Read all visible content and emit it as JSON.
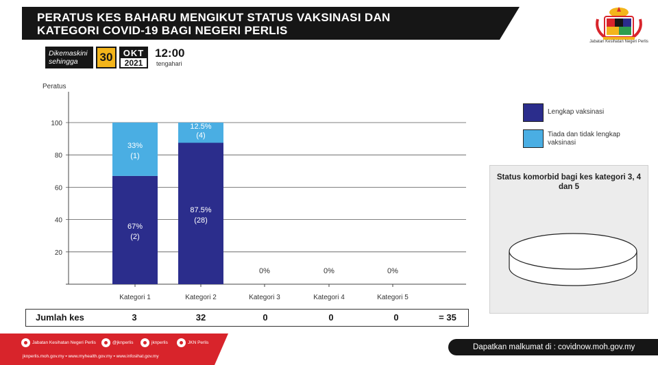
{
  "header": {
    "title_line1": "PERATUS KES BAHARU MENGIKUT STATUS VAKSINASI  DAN",
    "title_line2": "KATEGORI COVID-19 BAGI NEGERI PERLIS",
    "logo_text": "Jabatan Kesihatan Negeri Perlis"
  },
  "update": {
    "label": "Dikemaskini sehingga",
    "day": "30",
    "month": "OKT",
    "year": "2021",
    "time": "12:00",
    "time_sub": "tengahari"
  },
  "colors": {
    "complete": "#2b2d8c",
    "incomplete": "#4aaee3"
  },
  "chart_data": {
    "type": "bar",
    "stacked": true,
    "ylabel": "Peratus",
    "ylim": [
      0,
      100
    ],
    "yticks": [
      20,
      40,
      60,
      80,
      100
    ],
    "grid": true,
    "categories": [
      "Kategori 1",
      "Kategori 2",
      "Kategori 3",
      "Kategori 4",
      "Kategori 5"
    ],
    "series": [
      {
        "name": "Lengkap vaksinasi",
        "values": [
          67,
          87.5,
          0,
          0,
          0
        ],
        "labels": [
          "67%",
          "87.5%",
          "",
          "",
          ""
        ],
        "counts": [
          "(2)",
          "(28)",
          "",
          "",
          ""
        ]
      },
      {
        "name": "Tiada dan tidak lengkap vaksinasi",
        "values": [
          33,
          12.5,
          0,
          0,
          0
        ],
        "labels": [
          "33%",
          "12.5%",
          "",
          "",
          ""
        ],
        "counts": [
          "(1)",
          "(4)",
          "",
          "",
          ""
        ]
      }
    ],
    "zero_labels": [
      "",
      "",
      "0%",
      "0%",
      "0%"
    ]
  },
  "legend": {
    "complete": "Lengkap vaksinasi",
    "incomplete": "Tiada dan tidak lengkap vaksinasi"
  },
  "comorbid": {
    "title": "Status komorbid bagi kes kategori 3, 4 dan 5"
  },
  "totals": {
    "label": "Jumlah kes",
    "values": [
      "3",
      "32",
      "0",
      "0",
      "0"
    ],
    "sum": "= 35"
  },
  "footer": {
    "facebook": "Jabatan Kesihatan Negeri Perlis",
    "twitter": "@jknperlis",
    "instagram": "jknperlis",
    "other": "JKN Perlis",
    "links": "jknperlis.moh.gov.my  ▪  www.myhealth.gov.my  ▪  www.infosihat.gov.my",
    "source": "Dapatkan malkumat di : covidnow.moh.gov.my"
  }
}
